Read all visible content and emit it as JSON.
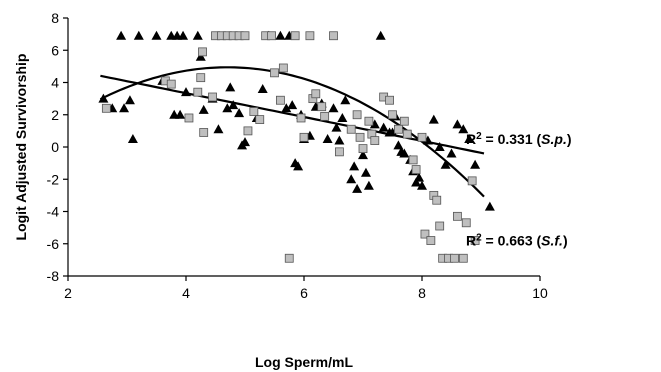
{
  "chart_data": {
    "type": "scatter",
    "title": "",
    "xlabel": "Log Sperm/mL",
    "ylabel": "Logit Adjusted Survivorship",
    "xlim": [
      2,
      10
    ],
    "ylim": [
      -8,
      8
    ],
    "x_ticks": [
      2,
      4,
      6,
      8,
      10
    ],
    "y_ticks": [
      -8,
      -6,
      -4,
      -2,
      0,
      2,
      4,
      6,
      8
    ],
    "grid": false,
    "legend": "none",
    "series": [
      {
        "marker": "triangle",
        "color": "#000000",
        "points": [
          [
            2.6,
            3.0
          ],
          [
            2.75,
            2.4
          ],
          [
            2.9,
            6.9
          ],
          [
            2.95,
            2.4
          ],
          [
            3.05,
            2.9
          ],
          [
            3.1,
            0.5
          ],
          [
            3.2,
            6.9
          ],
          [
            3.5,
            6.9
          ],
          [
            3.6,
            4.1
          ],
          [
            3.75,
            6.9
          ],
          [
            3.8,
            2.0
          ],
          [
            3.85,
            6.9
          ],
          [
            3.9,
            2.0
          ],
          [
            3.95,
            6.9
          ],
          [
            4.0,
            3.4
          ],
          [
            4.2,
            6.9
          ],
          [
            4.25,
            5.6
          ],
          [
            4.3,
            2.3
          ],
          [
            4.45,
            3.0
          ],
          [
            4.55,
            1.1
          ],
          [
            4.7,
            2.4
          ],
          [
            4.75,
            3.7
          ],
          [
            4.8,
            2.6
          ],
          [
            4.9,
            2.1
          ],
          [
            4.95,
            0.1
          ],
          [
            5.0,
            0.3
          ],
          [
            5.2,
            1.8
          ],
          [
            5.3,
            3.6
          ],
          [
            5.4,
            6.9
          ],
          [
            5.6,
            6.9
          ],
          [
            5.7,
            2.4
          ],
          [
            5.75,
            6.9
          ],
          [
            5.8,
            2.6
          ],
          [
            5.85,
            -1.0
          ],
          [
            5.9,
            -1.2
          ],
          [
            5.95,
            2.0
          ],
          [
            6.0,
            0.5
          ],
          [
            6.1,
            0.7
          ],
          [
            6.2,
            2.5
          ],
          [
            6.3,
            2.7
          ],
          [
            6.4,
            0.5
          ],
          [
            6.5,
            2.4
          ],
          [
            6.55,
            1.2
          ],
          [
            6.6,
            0.4
          ],
          [
            6.65,
            1.8
          ],
          [
            6.7,
            2.9
          ],
          [
            6.8,
            -2.0
          ],
          [
            6.85,
            -1.2
          ],
          [
            6.9,
            -2.6
          ],
          [
            7.0,
            -0.5
          ],
          [
            7.05,
            -1.6
          ],
          [
            7.1,
            -2.4
          ],
          [
            7.2,
            1.4
          ],
          [
            7.3,
            6.9
          ],
          [
            7.35,
            1.2
          ],
          [
            7.45,
            0.9
          ],
          [
            7.5,
            0.9
          ],
          [
            7.55,
            1.9
          ],
          [
            7.6,
            0.1
          ],
          [
            7.65,
            -0.3
          ],
          [
            7.7,
            -0.4
          ],
          [
            7.8,
            -0.8
          ],
          [
            7.85,
            -1.5
          ],
          [
            7.9,
            -2.2
          ],
          [
            7.95,
            -1.9
          ],
          [
            8.0,
            -2.4
          ],
          [
            8.1,
            0.4
          ],
          [
            8.2,
            1.7
          ],
          [
            8.3,
            0.0
          ],
          [
            8.4,
            -1.1
          ],
          [
            8.5,
            -0.4
          ],
          [
            8.6,
            1.4
          ],
          [
            8.7,
            1.1
          ],
          [
            8.8,
            0.5
          ],
          [
            8.9,
            -1.1
          ],
          [
            9.15,
            -3.7
          ]
        ]
      },
      {
        "marker": "square",
        "color": "#bfbfbf",
        "points": [
          [
            2.65,
            2.4
          ],
          [
            3.65,
            4.1
          ],
          [
            3.75,
            3.9
          ],
          [
            4.05,
            1.8
          ],
          [
            4.2,
            3.4
          ],
          [
            4.25,
            4.3
          ],
          [
            4.28,
            5.9
          ],
          [
            4.3,
            0.9
          ],
          [
            4.45,
            3.1
          ],
          [
            4.5,
            6.9
          ],
          [
            4.6,
            6.9
          ],
          [
            4.7,
            6.9
          ],
          [
            4.8,
            6.9
          ],
          [
            4.9,
            6.9
          ],
          [
            5.0,
            6.9
          ],
          [
            5.05,
            1.0
          ],
          [
            5.15,
            2.2
          ],
          [
            5.25,
            1.7
          ],
          [
            5.35,
            6.9
          ],
          [
            5.45,
            6.9
          ],
          [
            5.5,
            4.6
          ],
          [
            5.6,
            2.9
          ],
          [
            5.65,
            4.9
          ],
          [
            5.75,
            -6.9
          ],
          [
            5.85,
            6.9
          ],
          [
            5.95,
            1.8
          ],
          [
            6.0,
            0.6
          ],
          [
            6.1,
            6.9
          ],
          [
            6.15,
            3.0
          ],
          [
            6.2,
            3.3
          ],
          [
            6.3,
            2.5
          ],
          [
            6.35,
            1.9
          ],
          [
            6.5,
            6.9
          ],
          [
            6.6,
            -0.3
          ],
          [
            6.8,
            1.1
          ],
          [
            6.9,
            2.0
          ],
          [
            6.95,
            0.6
          ],
          [
            7.0,
            -0.1
          ],
          [
            7.1,
            1.6
          ],
          [
            7.15,
            0.8
          ],
          [
            7.2,
            0.4
          ],
          [
            7.35,
            3.1
          ],
          [
            7.45,
            2.9
          ],
          [
            7.5,
            2.0
          ],
          [
            7.6,
            1.1
          ],
          [
            7.7,
            1.6
          ],
          [
            7.75,
            0.8
          ],
          [
            7.85,
            -0.8
          ],
          [
            7.9,
            -1.4
          ],
          [
            8.0,
            0.6
          ],
          [
            8.05,
            -5.4
          ],
          [
            8.15,
            -5.8
          ],
          [
            8.2,
            -3.0
          ],
          [
            8.25,
            -3.3
          ],
          [
            8.3,
            -4.9
          ],
          [
            8.35,
            -6.9
          ],
          [
            8.45,
            -6.9
          ],
          [
            8.55,
            -6.9
          ],
          [
            8.6,
            -4.3
          ],
          [
            8.7,
            -6.9
          ],
          [
            8.75,
            -4.7
          ],
          [
            8.85,
            -2.1
          ],
          [
            8.9,
            -5.8
          ]
        ]
      }
    ],
    "trendlines": [
      {
        "kind": "linear",
        "coeffs": [
          6.3,
          -0.74
        ],
        "x_range": [
          2.55,
          9.05
        ]
      },
      {
        "kind": "quadratic",
        "coeffs": [
          -4.47,
          4.0,
          -0.425
        ],
        "x_range": [
          2.55,
          9.05
        ]
      }
    ],
    "annotations": [
      {
        "r2_prefix": "R",
        "r2_sup": "2",
        "r2_value": " = 0.331 (",
        "species": "S.p.",
        "close": ")",
        "at_x": 9.05,
        "at_y": 0.5
      },
      {
        "r2_prefix": "R",
        "r2_sup": "2",
        "r2_value": " = 0.663 (",
        "species": "S.f.",
        "close": ")",
        "at_x": 9.05,
        "at_y": -5.8
      }
    ]
  }
}
